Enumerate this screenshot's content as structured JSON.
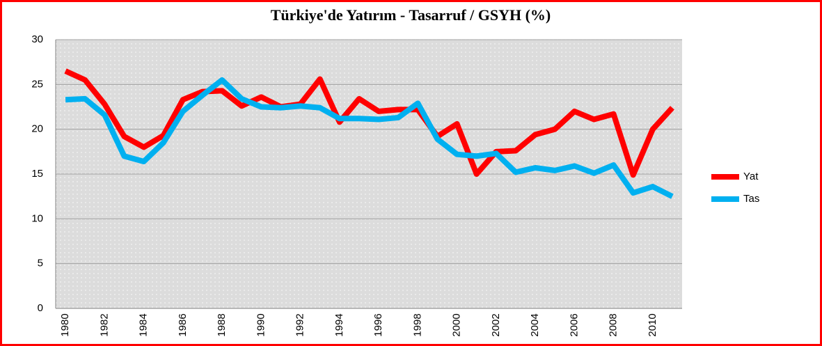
{
  "chart_data": {
    "type": "line",
    "title": "Türkiye'de Yatırım - Tasarruf / GSYH (%)",
    "categories": [
      "1980",
      null,
      "1982",
      null,
      "1984",
      null,
      "1986",
      null,
      "1988",
      null,
      "1990",
      null,
      "1992",
      null,
      "1994",
      null,
      "1996",
      null,
      "1998",
      null,
      "2000",
      null,
      "2002",
      null,
      "2004",
      null,
      "2006",
      null,
      "2008",
      null,
      "2010",
      null
    ],
    "series": [
      {
        "name": "Yat",
        "color": "#ff0000",
        "values": [
          26.5,
          25.5,
          22.8,
          19.2,
          18.0,
          19.3,
          23.3,
          24.2,
          24.3,
          22.6,
          23.6,
          22.5,
          22.8,
          25.6,
          20.8,
          23.4,
          22.0,
          22.2,
          22.2,
          19.2,
          20.6,
          15.0,
          17.5,
          17.6,
          19.4,
          20.0,
          22.0,
          21.1,
          21.7,
          14.9,
          20.0,
          22.4
        ]
      },
      {
        "name": "Tas",
        "color": "#00b0f0",
        "values": [
          23.3,
          23.4,
          21.6,
          17.0,
          16.4,
          18.5,
          22.0,
          23.8,
          25.5,
          23.4,
          22.5,
          22.4,
          22.6,
          22.4,
          21.2,
          21.2,
          21.1,
          21.3,
          22.9,
          18.9,
          17.2,
          17.0,
          17.3,
          15.2,
          15.7,
          15.4,
          15.9,
          15.1,
          16.0,
          12.9,
          13.6,
          12.5
        ]
      }
    ],
    "ylim": [
      0,
      30
    ],
    "yticks": [
      0,
      5,
      10,
      15,
      20,
      25,
      30
    ],
    "grid": true,
    "legend": "right"
  }
}
